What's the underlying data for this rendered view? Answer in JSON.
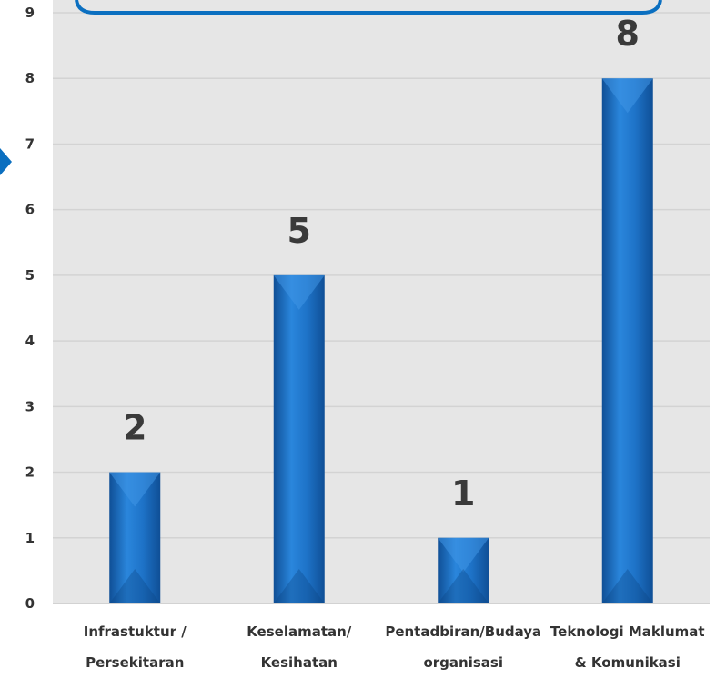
{
  "colors": {
    "plot_background": "#e6e6e6",
    "gridline": "#d3d3d3",
    "bar": "#1e73c8",
    "bar_dark": "#0f4f96",
    "accent_frame": "#0b6fc0"
  },
  "chart_data": {
    "type": "bar",
    "categories": [
      "Infrastuktur / Persekitaran",
      "Keselamatan/ Kesihatan",
      "Pentadbiran/Budaya organisasi",
      "Teknologi Maklumat & Komunikasi"
    ],
    "category_lines": [
      [
        "Infrastuktur /",
        "Persekitaran"
      ],
      [
        "Keselamatan/",
        "Kesihatan"
      ],
      [
        "Pentadbiran/Budaya",
        "organisasi"
      ],
      [
        "Teknologi Maklumat",
        "& Komunikasi"
      ]
    ],
    "values": [
      2,
      5,
      1,
      8
    ],
    "data_labels": [
      "2",
      "5",
      "1",
      "8"
    ],
    "ylim": [
      0,
      9
    ],
    "yticks": [
      "0",
      "1",
      "2",
      "3",
      "4",
      "5",
      "6",
      "7",
      "8",
      "9"
    ],
    "grid": true,
    "legend": "none",
    "title": "",
    "xlabel": "",
    "ylabel": ""
  }
}
